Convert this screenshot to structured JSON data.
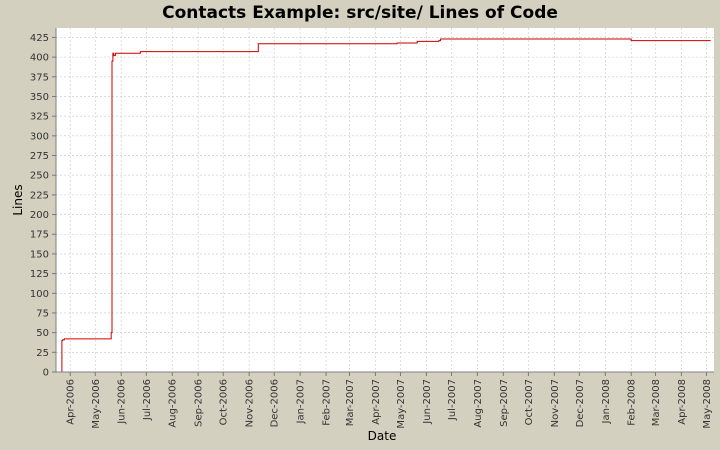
{
  "chart_data": {
    "type": "line",
    "title": "Contacts Example: src/site/ Lines of Code",
    "xlabel": "Date",
    "ylabel": "Lines",
    "ylim": [
      0,
      437
    ],
    "xlim": [
      "2006-03-15",
      "2008-05-10"
    ],
    "yticks": [
      0,
      25,
      50,
      75,
      100,
      125,
      150,
      175,
      200,
      225,
      250,
      275,
      300,
      325,
      350,
      375,
      400,
      425
    ],
    "xticks": [
      "Apr-2006",
      "May-2006",
      "Jun-2006",
      "Jul-2006",
      "Aug-2006",
      "Sep-2006",
      "Oct-2006",
      "Nov-2006",
      "Dec-2006",
      "Jan-2007",
      "Feb-2007",
      "Mar-2007",
      "Apr-2007",
      "May-2007",
      "Jun-2007",
      "Jul-2007",
      "Aug-2007",
      "Sep-2007",
      "Oct-2007",
      "Nov-2007",
      "Dec-2007",
      "Jan-2008",
      "Feb-2008",
      "Mar-2008",
      "Apr-2008",
      "May-2008"
    ],
    "grid": true,
    "step": true,
    "colors": {
      "line": "#cc0000",
      "grid": "#c8c8c8",
      "plot_bg": "#ffffff",
      "background": "#d4d0c0"
    },
    "series": [
      {
        "x": [
          "2006-03-22",
          "2006-03-23",
          "2006-03-25",
          "2006-05-20",
          "2006-05-21",
          "2006-05-22",
          "2006-05-23",
          "2006-05-25",
          "2006-06-24",
          "2006-11-12",
          "2007-04-27",
          "2007-05-21",
          "2007-06-16",
          "2007-06-18",
          "2008-02-01",
          "2008-05-06"
        ],
        "y": [
          40,
          41,
          42,
          50,
          395,
          405,
          402,
          405,
          407,
          417,
          418,
          420,
          421,
          423,
          421,
          421
        ]
      }
    ]
  }
}
